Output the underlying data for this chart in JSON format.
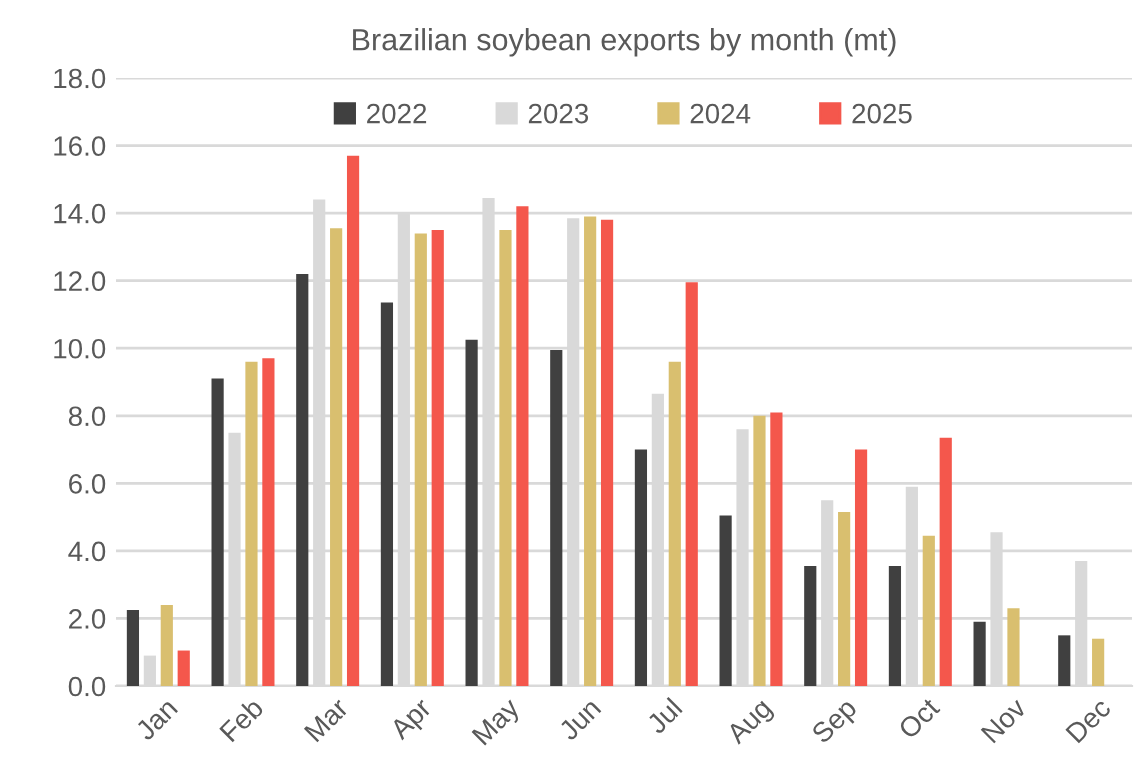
{
  "chart_data": {
    "type": "bar",
    "title": "Brazilian soybean exports by month (mt)",
    "categories": [
      "Jan",
      "Feb",
      "Mar",
      "Apr",
      "May",
      "Jun",
      "Jul",
      "Aug",
      "Sep",
      "Oct",
      "Nov",
      "Dec"
    ],
    "series": [
      {
        "name": "2022",
        "color": "#404040",
        "values": [
          2.25,
          9.1,
          12.2,
          11.35,
          10.25,
          9.95,
          7.0,
          5.05,
          3.55,
          3.55,
          1.9,
          1.5
        ]
      },
      {
        "name": "2023",
        "color": "#d9d9d9",
        "values": [
          0.9,
          7.5,
          14.4,
          14.0,
          14.45,
          13.85,
          8.65,
          7.6,
          5.5,
          5.9,
          4.55,
          3.7
        ]
      },
      {
        "name": "2024",
        "color": "#d9bf6f",
        "values": [
          2.4,
          9.6,
          13.55,
          13.4,
          13.5,
          13.9,
          9.6,
          8.0,
          5.15,
          4.45,
          2.3,
          1.4
        ]
      },
      {
        "name": "2025",
        "color": "#f4574c",
        "values": [
          1.05,
          9.7,
          15.7,
          13.5,
          14.2,
          13.8,
          11.95,
          8.1,
          7.0,
          7.35,
          null,
          null
        ]
      }
    ],
    "ylim": [
      0,
      18
    ],
    "yticks": [
      {
        "value": 0,
        "label": "0.0"
      },
      {
        "value": 2,
        "label": "2.0"
      },
      {
        "value": 4,
        "label": "4.0"
      },
      {
        "value": 6,
        "label": "6.0"
      },
      {
        "value": 8,
        "label": "8.0"
      },
      {
        "value": 10,
        "label": "10.0"
      },
      {
        "value": 12,
        "label": "12.0"
      },
      {
        "value": 14,
        "label": "14.0"
      },
      {
        "value": 16,
        "label": "16.0"
      },
      {
        "value": 18,
        "label": "18.0"
      }
    ],
    "grid": "y",
    "legend": "top"
  }
}
